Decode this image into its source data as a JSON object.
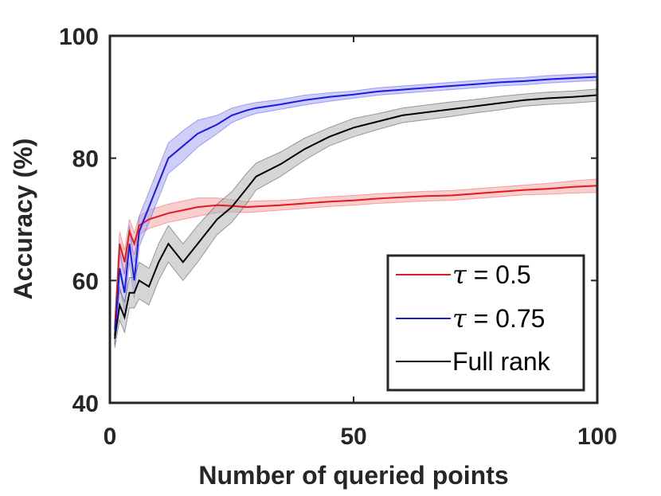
{
  "chart_data": {
    "type": "line",
    "title": "",
    "xlabel": "Number of queried points",
    "ylabel": "Accuracy (%)",
    "xlim": [
      0,
      100
    ],
    "ylim": [
      40,
      100
    ],
    "xticks": [
      0,
      50,
      100
    ],
    "yticks": [
      40,
      60,
      80,
      100
    ],
    "xtick_labels": [
      "0",
      "50",
      "100"
    ],
    "ytick_labels": [
      "40",
      "60",
      "80",
      "100"
    ],
    "grid": false,
    "legend_position": "bottom-right",
    "x": [
      1,
      2,
      3,
      4,
      5,
      6,
      8,
      10,
      12,
      15,
      18,
      22,
      25,
      28,
      30,
      35,
      40,
      45,
      50,
      55,
      60,
      65,
      70,
      75,
      80,
      85,
      90,
      95,
      100
    ],
    "series": [
      {
        "name": "τ = 0.5",
        "legend_symbol": "τ",
        "legend_text": " = 0.5",
        "color": "#e31a1c",
        "band_color": "#f4a6a6",
        "values": [
          52,
          66,
          63,
          68,
          66,
          69,
          70,
          70.5,
          71,
          71.5,
          72,
          72.3,
          72.2,
          72.0,
          72.1,
          72.3,
          72.6,
          72.9,
          73.1,
          73.4,
          73.6,
          73.8,
          73.9,
          74.2,
          74.5,
          74.8,
          75.0,
          75.3,
          75.5
        ],
        "spread": [
          1.5,
          2,
          2,
          2,
          1.8,
          1.5,
          1.5,
          1.5,
          1.5,
          1.5,
          1.5,
          1.2,
          1.0,
          0.9,
          0.9,
          0.8,
          0.8,
          0.8,
          0.8,
          0.8,
          0.8,
          0.8,
          0.8,
          0.8,
          0.8,
          0.8,
          0.9,
          1.0,
          1.1
        ]
      },
      {
        "name": "τ = 0.75",
        "legend_symbol": "τ",
        "legend_text": " = 0.75",
        "color": "#1a1ae6",
        "band_color": "#a6a6f4",
        "values": [
          51,
          62,
          58,
          66,
          60,
          68,
          72,
          76,
          80,
          82,
          84,
          85.5,
          87,
          87.8,
          88.2,
          88.8,
          89.5,
          90.0,
          90.4,
          90.9,
          91.2,
          91.5,
          91.8,
          92.1,
          92.4,
          92.6,
          92.9,
          93.1,
          93.3
        ],
        "spread": [
          1.5,
          3,
          3,
          3,
          3,
          2.5,
          2.5,
          2.5,
          2.5,
          2.5,
          2.2,
          1.5,
          1.2,
          1.0,
          0.9,
          0.8,
          0.8,
          0.7,
          0.6,
          0.6,
          0.6,
          0.6,
          0.6,
          0.6,
          0.6,
          0.6,
          0.6,
          0.6,
          0.6
        ]
      },
      {
        "name": "Full rank",
        "legend_symbol": "",
        "legend_text": "Full rank",
        "color": "#000000",
        "band_color": "#b3b3b3",
        "values": [
          50.5,
          56,
          54,
          58,
          58,
          60,
          59,
          63,
          66,
          63,
          66,
          70,
          72,
          75,
          77,
          79,
          81.5,
          83.5,
          85,
          86,
          87,
          87.5,
          88,
          88.5,
          89,
          89.5,
          89.8,
          90.0,
          90.3
        ],
        "spread": [
          1.5,
          2.5,
          2.5,
          2.5,
          2.5,
          3,
          3,
          3,
          3,
          3,
          3,
          2.5,
          2.5,
          2.5,
          2.2,
          2.0,
          1.8,
          1.5,
          1.5,
          1.3,
          1.2,
          1.2,
          1.2,
          1.1,
          1.1,
          1.0,
          1.0,
          1.0,
          1.0
        ]
      }
    ]
  }
}
